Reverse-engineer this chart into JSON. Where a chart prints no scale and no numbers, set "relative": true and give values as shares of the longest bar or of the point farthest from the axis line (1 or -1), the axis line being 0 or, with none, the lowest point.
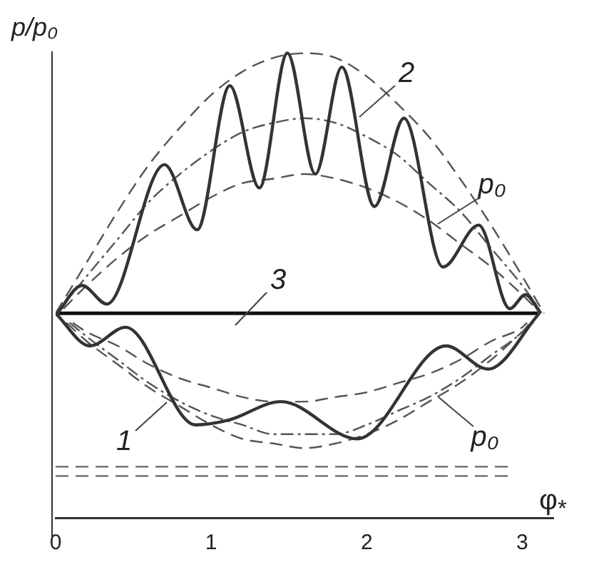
{
  "chart_data": {
    "type": "line",
    "relative": true,
    "ylabel": "p/p₀",
    "xlabel": "φ$_{*}$",
    "xlim": [
      0,
      3.2
    ],
    "xticks": [
      0,
      1,
      2,
      3
    ],
    "legend": false,
    "marker": "none",
    "series": [
      {
        "color": "#333333",
        "line_style": "solid",
        "x": [
          0,
          0.22,
          0.45,
          0.9,
          1.11,
          1.45,
          1.94,
          2.51,
          2.78,
          3.11
        ],
        "values": [
          0.44,
          0.37,
          0.41,
          0.2,
          0.21,
          0.25,
          0.17,
          0.37,
          0.32,
          0.44
        ]
      },
      {
        "color": "#333333",
        "line_style": "solid",
        "x": [
          0.01,
          0.17,
          0.33,
          0.7,
          0.91,
          1.12,
          1.31,
          1.49,
          1.67,
          1.84,
          2.05,
          2.24,
          2.49,
          2.72,
          2.92,
          3.02,
          3.12
        ],
        "values": [
          0.44,
          0.5,
          0.46,
          0.76,
          0.62,
          0.93,
          0.71,
          1.0,
          0.74,
          0.97,
          0.67,
          0.86,
          0.54,
          0.63,
          0.45,
          0.48,
          0.44
        ]
      },
      {
        "color": "#111111",
        "line_style": "solid",
        "x": [
          0.02,
          3.1
        ],
        "values": [
          0.44,
          0.44
        ]
      },
      {
        "color": "#555555",
        "line_style": "dashed",
        "x": [
          0,
          0.2,
          0.4,
          0.6,
          0.8,
          1.0,
          1.2,
          1.4,
          1.6,
          1.8,
          2.0,
          2.2,
          2.4,
          2.6,
          2.8,
          3.0,
          3.14
        ],
        "values": [
          0.44,
          0.55,
          0.66,
          0.76,
          0.84,
          0.91,
          0.96,
          0.99,
          1.0,
          0.99,
          0.95,
          0.89,
          0.82,
          0.73,
          0.63,
          0.52,
          0.44
        ]
      },
      {
        "color": "#555555",
        "line_style": "dotted",
        "x": [
          0.03,
          0.2,
          0.4,
          0.6,
          0.8,
          1.0,
          1.2,
          1.4,
          1.6,
          1.8,
          2.0,
          2.2,
          2.4,
          2.6,
          2.8,
          3.0,
          3.11
        ],
        "values": [
          0.45,
          0.52,
          0.6,
          0.68,
          0.74,
          0.79,
          0.83,
          0.85,
          0.86,
          0.85,
          0.82,
          0.78,
          0.72,
          0.66,
          0.58,
          0.5,
          0.45
        ]
      },
      {
        "color": "#555555",
        "line_style": "dashed",
        "x": [
          0.05,
          0.2,
          0.4,
          0.6,
          0.8,
          1.0,
          1.2,
          1.4,
          1.6,
          1.8,
          2.0,
          2.2,
          2.4,
          2.6,
          2.8,
          3.0,
          3.09
        ],
        "values": [
          0.45,
          0.5,
          0.56,
          0.61,
          0.65,
          0.69,
          0.72,
          0.73,
          0.74,
          0.73,
          0.71,
          0.68,
          0.64,
          0.59,
          0.54,
          0.48,
          0.45
        ]
      },
      {
        "color": "#555555",
        "line_style": "dashed",
        "x": [
          0.07,
          0.2,
          0.4,
          0.6,
          0.8,
          1.0,
          1.2,
          1.4,
          1.6,
          1.8,
          2.0,
          2.2,
          2.4,
          2.6,
          2.8,
          3.0,
          3.07
        ],
        "values": [
          0.42,
          0.38,
          0.33,
          0.28,
          0.24,
          0.2,
          0.17,
          0.16,
          0.15,
          0.16,
          0.18,
          0.21,
          0.25,
          0.29,
          0.34,
          0.4,
          0.42
        ]
      },
      {
        "color": "#555555",
        "line_style": "dotted",
        "x": [
          0.09,
          0.2,
          0.4,
          0.6,
          0.8,
          1.0,
          1.2,
          1.4,
          1.6,
          1.8,
          2.0,
          2.2,
          2.4,
          2.6,
          2.8,
          3.0,
          3.05
        ],
        "values": [
          0.42,
          0.39,
          0.34,
          0.29,
          0.25,
          0.22,
          0.2,
          0.18,
          0.18,
          0.18,
          0.2,
          0.23,
          0.26,
          0.3,
          0.35,
          0.4,
          0.42
        ]
      },
      {
        "color": "#555555",
        "line_style": "dashed",
        "x": [
          0.11,
          0.2,
          0.4,
          0.6,
          0.8,
          1.0,
          1.2,
          1.4,
          1.6,
          1.8,
          2.0,
          2.2,
          2.4,
          2.6,
          2.8,
          3.0,
          3.03
        ],
        "values": [
          0.42,
          0.4,
          0.37,
          0.33,
          0.3,
          0.28,
          0.26,
          0.25,
          0.25,
          0.26,
          0.27,
          0.29,
          0.31,
          0.34,
          0.38,
          0.41,
          0.42
        ]
      },
      {
        "color": "#666666",
        "line_style": "dashed",
        "x": [
          0,
          2.93
        ],
        "values": [
          0.11,
          0.11
        ]
      },
      {
        "color": "#666666",
        "line_style": "dashed",
        "x": [
          0,
          2.93
        ],
        "values": [
          0.09,
          0.09
        ]
      }
    ],
    "annotations": [
      "2",
      "p₀",
      "3",
      "1",
      "p₀"
    ]
  }
}
